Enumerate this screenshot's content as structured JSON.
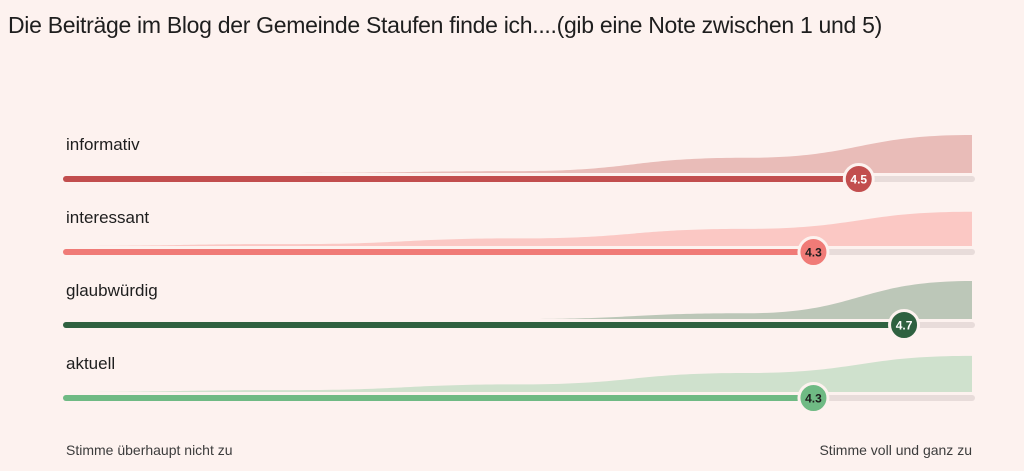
{
  "chart_data": {
    "type": "rating-scale",
    "title": "Die Beiträge im Blog der Gemeinde Staufen finde ich....(gib eine Note zwischen 1 und 5)",
    "scale_min": 1,
    "scale_max": 5,
    "min_label": "Stimme überhaupt nicht zu",
    "max_label": "Stimme voll und ganz zu",
    "series": [
      {
        "name": "informativ",
        "value": 4.5,
        "value_label": "4.5",
        "color": "#c24e4e",
        "fill": "#e9bcb8",
        "knob_text": "#ffffff",
        "distribution": [
          0,
          0,
          0.05,
          0.4,
          1
        ]
      },
      {
        "name": "interessant",
        "value": 4.3,
        "value_label": "4.3",
        "color": "#f07b77",
        "fill": "#fbc8c4",
        "knob_text": "#1e1e1e",
        "distribution": [
          0,
          0.05,
          0.2,
          0.45,
          0.9
        ]
      },
      {
        "name": "glaubwürdig",
        "value": 4.7,
        "value_label": "4.7",
        "color": "#2f6140",
        "fill": "#bcc7b8",
        "knob_text": "#ffffff",
        "distribution": [
          0,
          0,
          0,
          0.15,
          1
        ]
      },
      {
        "name": "aktuell",
        "value": 4.3,
        "value_label": "4.3",
        "color": "#6fba84",
        "fill": "#cfe1cd",
        "knob_text": "#1e1e1e",
        "distribution": [
          0,
          0.05,
          0.2,
          0.5,
          0.95
        ]
      }
    ]
  }
}
